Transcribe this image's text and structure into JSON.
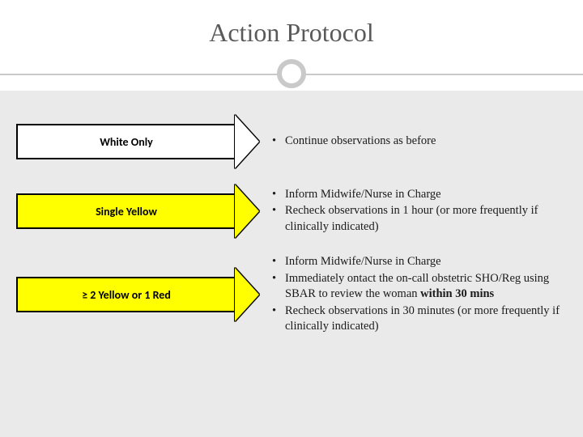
{
  "title": "Action Protocol",
  "decor": {
    "divider_color": "#c9c9c9",
    "body_bg": "#eaeaea",
    "circle_stroke_width": 6
  },
  "rows": [
    {
      "arrow_label": "White Only",
      "arrow_fill": "#ffffff",
      "arrow_border": "#000000",
      "bullets": [
        {
          "text": "Continue observations as before"
        }
      ]
    },
    {
      "arrow_label": "Single Yellow",
      "arrow_fill": "#ffff00",
      "arrow_border": "#000000",
      "bullets": [
        {
          "text": "Inform Midwife/Nurse in Charge"
        },
        {
          "text": "Recheck observations in 1 hour (or more frequently if clinically indicated)"
        }
      ]
    },
    {
      "arrow_label": "≥ 2 Yellow or 1 Red",
      "arrow_fill": "#ffff00",
      "arrow_border": "#000000",
      "bullets": [
        {
          "text": "Inform Midwife/Nurse in Charge"
        },
        {
          "text_pre": "Immediately ontact the on-call obstetric SHO/Reg using SBAR to review the woman ",
          "bold": "within 30 mins"
        },
        {
          "text": "Recheck observations in 30 minutes (or more frequently if clinically indicated)"
        }
      ]
    }
  ],
  "typography": {
    "title_fontsize": 32,
    "body_fontsize": 14.5,
    "arrow_label_fontsize": 14
  }
}
